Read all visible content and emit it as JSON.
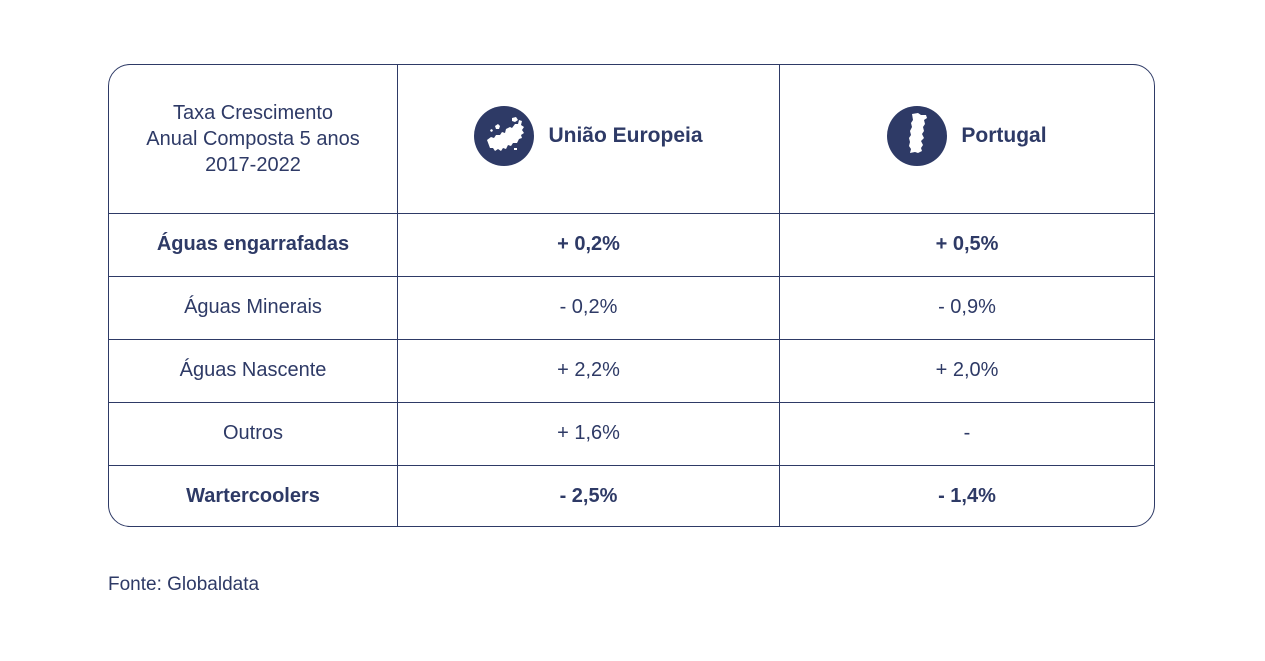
{
  "chart_data": {
    "type": "table",
    "header": {
      "title_lines": [
        "Taxa Crescimento",
        "Anual Composta 5 anos",
        "2017-2022"
      ],
      "columns": [
        {
          "label": "União Europeia",
          "icon": "eu-map-icon"
        },
        {
          "label": "Portugal",
          "icon": "portugal-map-icon"
        }
      ]
    },
    "rows": [
      {
        "label": "Águas engarrafadas",
        "ue": "+ 0,2%",
        "pt": "+ 0,5%",
        "bold": true
      },
      {
        "label": "Águas Minerais",
        "ue": "- 0,2%",
        "pt": "- 0,9%",
        "bold": false
      },
      {
        "label": "Águas Nascente",
        "ue": "+ 2,2%",
        "pt": "+ 2,0%",
        "bold": false
      },
      {
        "label": "Outros",
        "ue": "+ 1,6%",
        "pt": "-",
        "bold": false
      },
      {
        "label": "Wartercoolers",
        "ue": "- 2,5%",
        "pt": "- 1,4%",
        "bold": true
      }
    ],
    "source": "Fonte: Globaldata"
  },
  "colors": {
    "primary": "#2e3a66",
    "background": "#ffffff"
  }
}
